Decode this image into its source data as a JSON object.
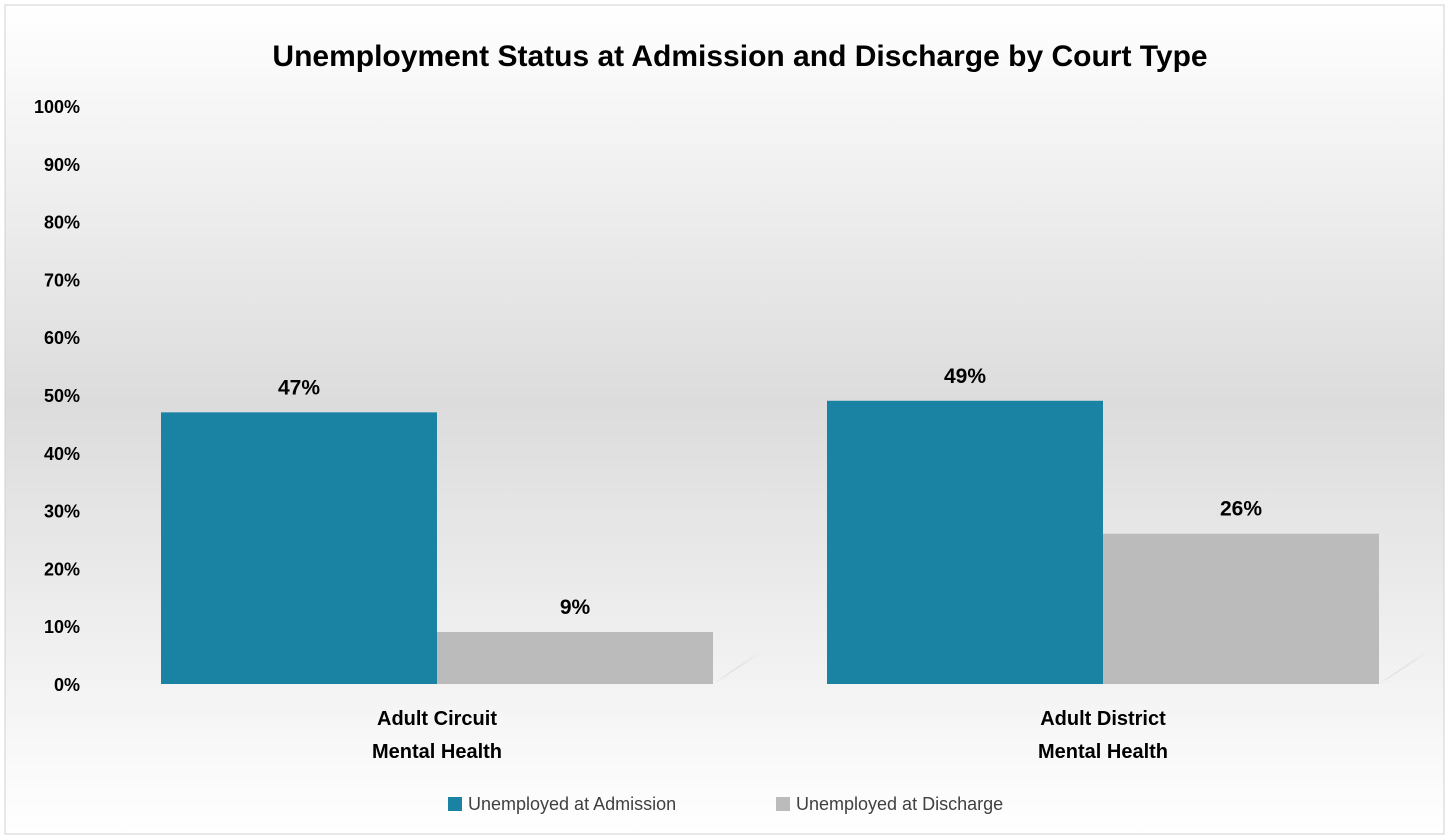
{
  "chart_data": {
    "type": "bar",
    "title": "Unemployment Status at Admission and Discharge by Court Type",
    "xlabel": "",
    "ylabel": "",
    "categories": [
      [
        "Adult Circuit",
        "Mental Health"
      ],
      [
        "Adult District",
        "Mental Health"
      ]
    ],
    "series": [
      {
        "name": "Unemployed at Admission",
        "values": [
          47,
          49
        ],
        "labels": [
          "47%",
          "49%"
        ],
        "color": "#1a82a2"
      },
      {
        "name": "Unemployed at Discharge",
        "values": [
          9,
          26
        ],
        "labels": [
          "9%",
          "26%"
        ],
        "color": "#bbbbbb"
      }
    ],
    "ylim": [
      0,
      100
    ],
    "yticks": [
      0,
      10,
      20,
      30,
      40,
      50,
      60,
      70,
      80,
      90,
      100
    ],
    "ytick_labels": [
      "0%",
      "10%",
      "20%",
      "30%",
      "40%",
      "50%",
      "60%",
      "70%",
      "80%",
      "90%",
      "100%"
    ],
    "grid": false,
    "legend_position": "bottom"
  },
  "colors": {
    "background_top": "#ffffff",
    "background_mid": "#dcdcdc",
    "background_bottom": "#ffffff",
    "border": "#d0d0d0"
  }
}
